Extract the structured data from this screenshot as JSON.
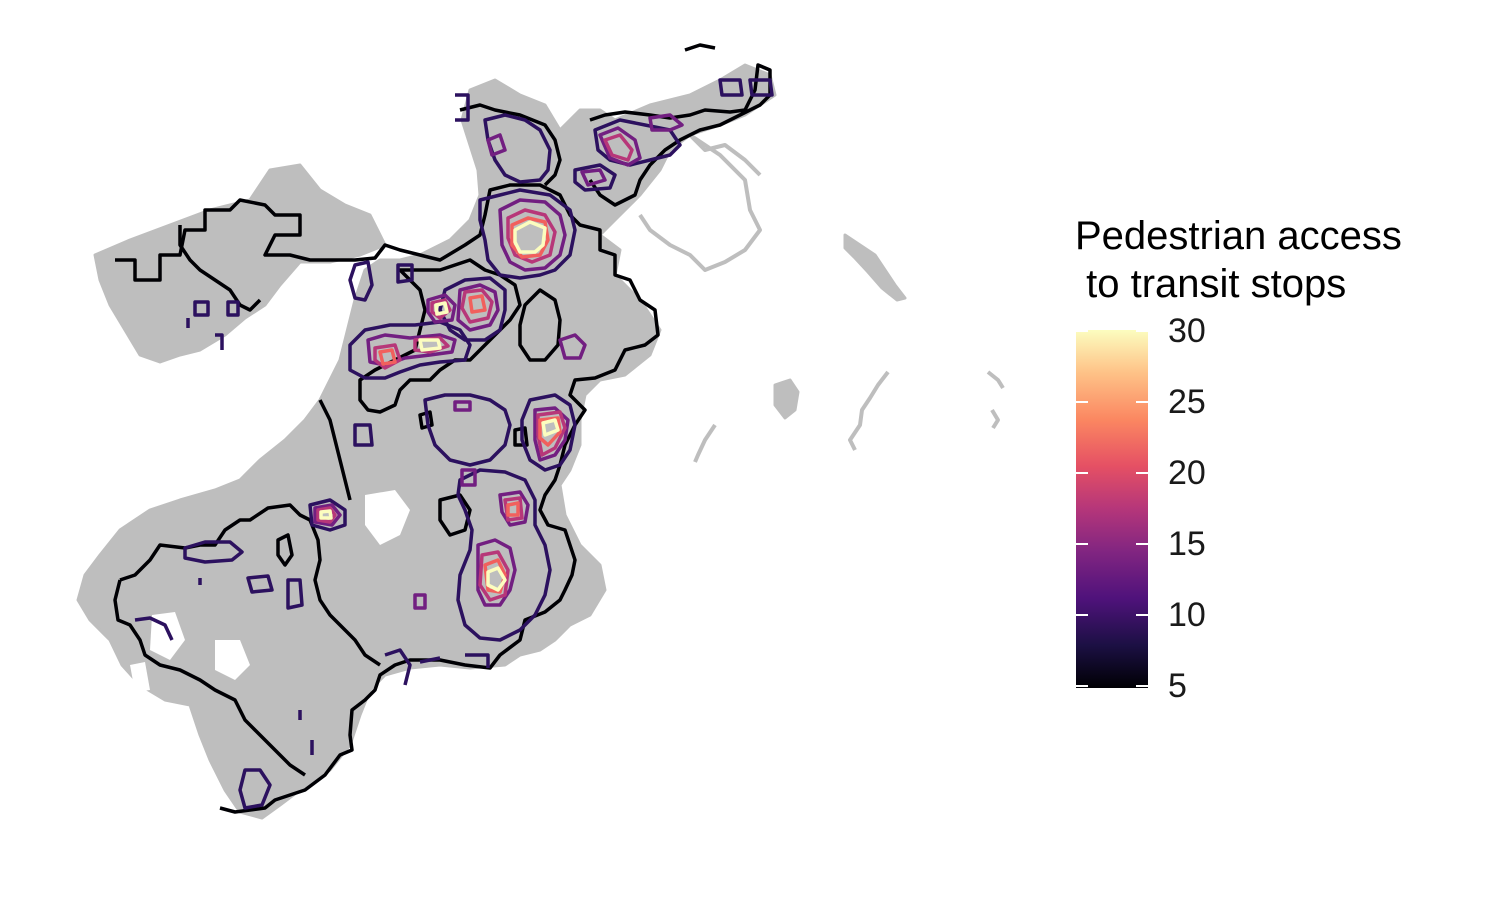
{
  "legend": {
    "title": "Pedestrian access\n to transit stops",
    "ticks": [
      "30",
      "25",
      "20",
      "15",
      "10",
      "5"
    ],
    "min": 5,
    "max": 30,
    "palette": [
      "#000004",
      "#1c1044",
      "#4f127b",
      "#812581",
      "#b5367a",
      "#e55064",
      "#fb8761",
      "#fec287",
      "#fcfdbf"
    ]
  },
  "map": {
    "street_color": "#bebebe",
    "contour_colors": {
      "level_5": "#000004",
      "level_10": "#2c115f",
      "level_15": "#721f81",
      "level_20": "#b73779",
      "level_25": "#f1605d",
      "level_30": "#fcfdbf"
    }
  }
}
